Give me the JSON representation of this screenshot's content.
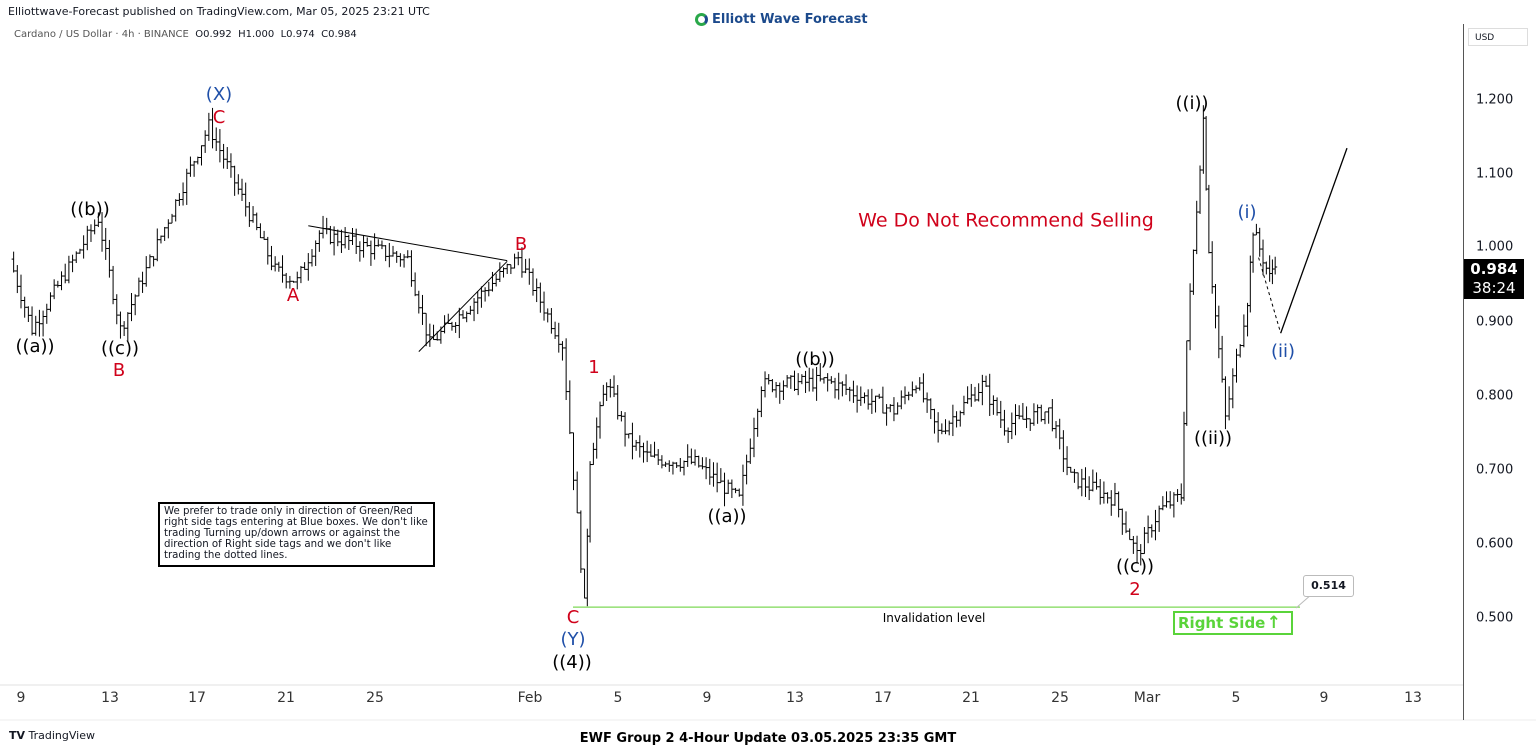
{
  "header": {
    "published": "Elliottwave-Forecast published on TradingView.com, Mar 05, 2025 23:21 UTC",
    "symbol": "Cardano / US Dollar · 4h · BINANCE",
    "open": "O0.992",
    "high": "H1.000",
    "low": "L0.974",
    "close": "C0.984",
    "logo": "Elliott Wave Forecast"
  },
  "price_axis": {
    "currency": "USD",
    "ticks": [
      "1.200",
      "1.100",
      "1.000",
      "0.900",
      "0.800",
      "0.700",
      "0.600",
      "0.500"
    ],
    "last_price": "0.984",
    "countdown": "38:24"
  },
  "time_axis": {
    "ticks": [
      "9",
      "13",
      "17",
      "21",
      "25",
      "Feb",
      "5",
      "9",
      "13",
      "17",
      "21",
      "25",
      "Mar",
      "5",
      "9",
      "13"
    ]
  },
  "annotations": {
    "wave_labels": [
      "((a))",
      "((b))",
      "((c))",
      "B",
      "(X)",
      "C",
      "A",
      "B",
      "1",
      "C",
      "(Y)",
      "((4))",
      "((a))",
      "((b))",
      "((c))",
      "2",
      "((i))",
      "((ii))",
      "(i)",
      "(ii)"
    ],
    "warning": "We Do Not Recommend Selling",
    "invalidation": "Invalidation level",
    "invalidation_price": "0.514",
    "right_side": "Right Side",
    "right_side_arrow": "↑",
    "note": "We prefer to trade only in direction of Green/Red right side tags entering at Blue boxes. We don't like trading Turning up/down arrows or against the direction of Right side tags and we don't like trading the dotted lines."
  },
  "footer": {
    "brand": "TradingView",
    "title": "EWF Group 2 4-Hour Update 03.05.2025 23:35 GMT"
  },
  "colors": {
    "bars": "#000000",
    "wave_red": "#d0021b",
    "wave_blue": "#1f4fa8",
    "invalidation": "#5ad43a",
    "badge": "#000000"
  },
  "chart_data": {
    "type": "ohlc",
    "interval": "4h",
    "ylim": [
      0.44,
      1.26
    ],
    "x_range": [
      "2025-01-08",
      "2025-03-16"
    ],
    "path": [
      [
        "2025-01-08",
        0.985
      ],
      [
        "2025-01-09",
        0.89
      ],
      [
        "2025-01-12",
        1.04
      ],
      [
        "2025-01-13",
        0.89
      ],
      [
        "2025-01-17",
        1.165
      ],
      [
        "2025-01-20",
        0.97
      ],
      [
        "2025-01-21",
        0.955
      ],
      [
        "2025-01-22",
        1.02
      ],
      [
        "2025-01-26",
        0.985
      ],
      [
        "2025-01-27",
        0.87
      ],
      [
        "2025-01-31",
        0.987
      ],
      [
        "2025-02-02",
        0.87
      ],
      [
        "2025-02-03",
        0.517
      ],
      [
        "2025-02-03",
        0.715
      ],
      [
        "2025-02-04",
        0.82
      ],
      [
        "2025-02-05",
        0.74
      ],
      [
        "2025-02-06",
        0.715
      ],
      [
        "2025-02-08",
        0.71
      ],
      [
        "2025-02-10",
        0.66
      ],
      [
        "2025-02-11",
        0.815
      ],
      [
        "2025-02-14",
        0.82
      ],
      [
        "2025-02-17",
        0.78
      ],
      [
        "2025-02-18",
        0.82
      ],
      [
        "2025-02-19",
        0.75
      ],
      [
        "2025-02-21",
        0.815
      ],
      [
        "2025-02-22",
        0.76
      ],
      [
        "2025-02-24",
        0.78
      ],
      [
        "2025-02-25",
        0.69
      ],
      [
        "2025-02-27",
        0.66
      ],
      [
        "2025-02-28",
        0.585
      ],
      [
        "2025-03-01",
        0.645
      ],
      [
        "2025-03-02",
        0.665
      ],
      [
        "2025-03-02",
        0.875
      ],
      [
        "2025-03-03",
        1.175
      ],
      [
        "2025-03-03",
        1.0
      ],
      [
        "2025-03-04",
        0.77
      ],
      [
        "2025-03-05",
        0.93
      ],
      [
        "2025-03-05",
        1.025
      ],
      [
        "2025-03-06",
        0.96
      ],
      [
        "2025-03-06",
        0.984
      ]
    ],
    "triangle": {
      "upper": [
        [
          "2025-01-22",
          1.03
        ],
        [
          "2025-01-31",
          0.983
        ]
      ],
      "lower": [
        [
          "2025-01-27",
          0.86
        ],
        [
          "2025-01-31",
          0.982
        ]
      ]
    },
    "invalidation_level": 0.514,
    "projection": {
      "dotted": [
        [
          "2025-03-06",
          0.987
        ],
        [
          "2025-03-07",
          0.885
        ]
      ],
      "solid": [
        [
          "2025-03-07",
          0.885
        ],
        [
          "2025-03-10",
          1.135
        ]
      ]
    }
  }
}
